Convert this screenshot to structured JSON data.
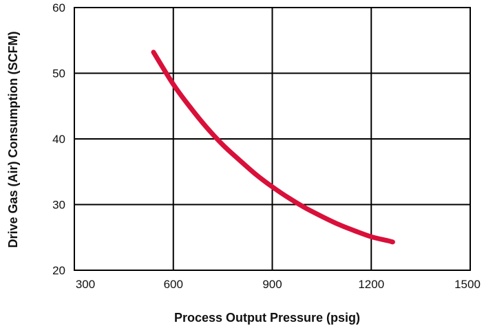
{
  "chart_data": {
    "type": "line",
    "title": "",
    "xlabel": "Process Output Pressure (psig)",
    "ylabel": "Drive Gas (Air) Consumption (SCFM)",
    "xlim": [
      300,
      1500
    ],
    "ylim": [
      20,
      60
    ],
    "x_ticks": [
      300,
      600,
      900,
      1200,
      1500
    ],
    "y_ticks": [
      20,
      30,
      40,
      50,
      60
    ],
    "grid": true,
    "legend": "none",
    "series": [
      {
        "color": "#d8103a",
        "x": [
          540,
          600,
          650,
          700,
          750,
          800,
          850,
          900,
          950,
          1000,
          1050,
          1100,
          1150,
          1200,
          1250,
          1265
        ],
        "y": [
          53.2,
          48.3,
          44.9,
          41.8,
          39.1,
          36.8,
          34.6,
          32.7,
          31.0,
          29.5,
          28.2,
          27.0,
          26.0,
          25.1,
          24.5,
          24.3
        ]
      }
    ]
  }
}
